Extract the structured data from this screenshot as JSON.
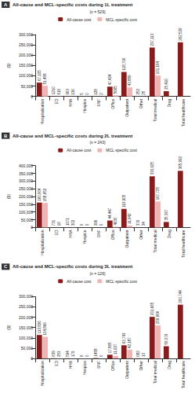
{
  "chart_data": [
    {
      "type": "bar",
      "label": "A",
      "title": "All-cause and MCL-specific costs during 1L treatment",
      "subtitle": "(n = 529)",
      "ylabel": "($)",
      "categories": [
        "Hospitalization",
        "ED",
        "HHA",
        "Hospice",
        "SNF",
        "Office",
        "Outpatient",
        "Other",
        "Total medical",
        "Drug",
        "Total healthcare"
      ],
      "series": [
        {
          "name": "All-cause cost",
          "color": "#8b1a1a",
          "values": [
            67105,
            1210,
            963,
            5,
            128,
            47424,
            118706,
            252,
            237113,
            25416,
            262529
          ],
          "value_labels": [
            "67,105",
            "1210",
            "963",
            "5",
            "128",
            "47,424",
            "118,706",
            "252",
            "237,113",
            "25,416",
            "262,529"
          ]
        },
        {
          "name": "MCL-specific cost",
          "color": "#f2b3b3",
          "values": [
            51458,
            616,
            136,
            0,
            2,
            5665,
            43889,
            25,
            101164,
            null,
            null
          ],
          "value_labels": [
            "51,458",
            "616",
            "136",
            "0",
            "2",
            "5665",
            "43,889",
            "25",
            "101,164",
            null,
            null
          ]
        }
      ],
      "ylim": [
        0,
        300000
      ],
      "yticks": [
        0,
        {
          "value": 50000,
          "label": "50,000"
        },
        {
          "value": 100000,
          "label": "100,000"
        },
        {
          "value": 150000,
          "label": "150,000"
        },
        {
          "value": 200000,
          "label": "200,000"
        },
        {
          "value": 250000,
          "label": "250,000"
        },
        {
          "value": 300000,
          "label": "300,000"
        }
      ],
      "grid": false,
      "legend": "top",
      "data_labels": true
    },
    {
      "type": "bar",
      "label": "B",
      "title": "All-cause and MCL-specific costs during 2L treatment",
      "subtitle": "(n = 243)",
      "ylabel": "($)",
      "categories": [
        "Hospitalization",
        "ED",
        "HHA",
        "Hospice",
        "SNF",
        "Office",
        "Outpatient",
        "Other",
        "Total medical",
        "Drug",
        "Total healthcare"
      ],
      "series": [
        {
          "name": "All-cause cost",
          "color": "#8b1a1a",
          "values": [
            160904,
            731,
            1071,
            0,
            396,
            44447,
            119905,
            376,
            330625,
            35367,
            365992
          ],
          "value_labels": [
            "160,904",
            "731",
            "1071",
            "0",
            "396",
            "44,447",
            "119,905",
            "376",
            "330,625",
            "35,367",
            "365,992"
          ]
        },
        {
          "name": "MCL-specific cost",
          "color": "#f2b3b3",
          "values": [
            158652,
            16,
            302,
            0,
            0,
            4630,
            11942,
            34,
            167725,
            null,
            null
          ],
          "value_labels": [
            "158,652",
            "16",
            "302",
            "0",
            "0",
            "4630",
            "11,942",
            "34",
            "167,725",
            null,
            null
          ]
        }
      ],
      "ylim": [
        0,
        400000
      ],
      "yticks": [
        0,
        {
          "value": 50000,
          "label": "50,000"
        },
        {
          "value": 100000,
          "label": "100,000"
        },
        {
          "value": 150000,
          "label": "150,000"
        },
        {
          "value": 200000,
          "label": "200,000"
        },
        {
          "value": 250000,
          "label": "250,000"
        },
        {
          "value": 300000,
          "label": "300,000"
        },
        {
          "value": 350000,
          "label": "350,000"
        },
        {
          "value": 400000,
          "label": "400,000"
        }
      ],
      "grid": false,
      "legend": "top",
      "data_labels": true
    },
    {
      "type": "bar",
      "label": "C",
      "title": "All-cause and MCL-specific costs during 3L treatment",
      "subtitle": "(n = 126)",
      "ylabel": "($)",
      "categories": [
        "Hospitalization",
        "ED",
        "HHA",
        "Hospice",
        "SNF",
        "Office",
        "Outpatient",
        "Other",
        "Total medical",
        "Drug",
        "Total healthcare"
      ],
      "series": [
        {
          "name": "All-cause cost",
          "color": "#8b1a1a",
          "values": [
            113826,
            639,
            594,
            6,
            1458,
            17865,
            63743,
            682,
            201665,
            59079,
            260744
          ],
          "value_labels": [
            "113,826",
            "639",
            "594",
            "6",
            "1458",
            "17,865",
            "63,743",
            "682",
            "201,665",
            "59,079",
            "260,744"
          ]
        },
        {
          "name": "MCL-specific cost",
          "color": "#f2b3b3",
          "values": [
            104866,
            253,
            179,
            0,
            0,
            11627,
            42187,
            13,
            159666,
            null,
            null
          ],
          "value_labels": [
            "104,866",
            "253",
            "179",
            "0",
            "0",
            "11,627",
            "42,187",
            "13",
            "159,666",
            null,
            null
          ]
        }
      ],
      "ylim": [
        0,
        300000
      ],
      "yticks": [
        0,
        {
          "value": 50000,
          "label": "50,000"
        },
        {
          "value": 100000,
          "label": "100,000"
        },
        {
          "value": 150000,
          "label": "150,000"
        },
        {
          "value": 200000,
          "label": "200,000"
        },
        {
          "value": 250000,
          "label": "250,000"
        },
        {
          "value": 300000,
          "label": "300,000"
        }
      ],
      "grid": false,
      "legend": "top",
      "data_labels": true
    }
  ]
}
